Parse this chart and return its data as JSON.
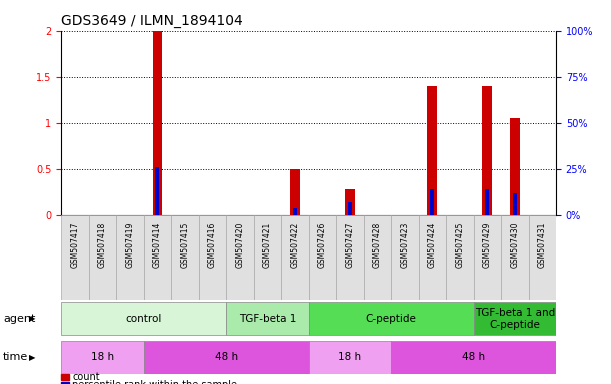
{
  "title": "GDS3649 / ILMN_1894104",
  "samples": [
    "GSM507417",
    "GSM507418",
    "GSM507419",
    "GSM507414",
    "GSM507415",
    "GSM507416",
    "GSM507420",
    "GSM507421",
    "GSM507422",
    "GSM507426",
    "GSM507427",
    "GSM507428",
    "GSM507423",
    "GSM507424",
    "GSM507425",
    "GSM507429",
    "GSM507430",
    "GSM507431"
  ],
  "counts": [
    0,
    0,
    0,
    2.0,
    0,
    0,
    0,
    0,
    0.5,
    0,
    0.28,
    0,
    0,
    1.4,
    0,
    1.4,
    1.05,
    0
  ],
  "percentiles_pct": [
    0,
    0,
    0,
    26,
    0,
    0,
    0,
    0,
    4,
    0,
    7,
    0,
    0,
    14,
    0,
    14,
    12,
    0
  ],
  "bar_color_red": "#cc0000",
  "bar_color_blue": "#0000cc",
  "ylim_left": [
    0,
    2.0
  ],
  "ylim_right": [
    0,
    100
  ],
  "yticks_left": [
    0,
    0.5,
    1.0,
    1.5,
    2.0
  ],
  "yticks_right": [
    0,
    25,
    50,
    75,
    100
  ],
  "ytick_labels_left": [
    "0",
    "0.5",
    "1",
    "1.5",
    "2"
  ],
  "ytick_labels_right": [
    "0%",
    "25%",
    "50%",
    "75%",
    "100%"
  ],
  "agent_groups": [
    {
      "label": "control",
      "start": 0,
      "end": 6,
      "color": "#d8f5d8"
    },
    {
      "label": "TGF-beta 1",
      "start": 6,
      "end": 9,
      "color": "#aaeaaa"
    },
    {
      "label": "C-peptide",
      "start": 9,
      "end": 15,
      "color": "#55dd55"
    },
    {
      "label": "TGF-beta 1 and\nC-peptide",
      "start": 15,
      "end": 18,
      "color": "#33bb33"
    }
  ],
  "time_groups": [
    {
      "label": "18 h",
      "start": 0,
      "end": 3,
      "color": "#f0a0f0"
    },
    {
      "label": "48 h",
      "start": 3,
      "end": 9,
      "color": "#dd55dd"
    },
    {
      "label": "18 h",
      "start": 9,
      "end": 12,
      "color": "#f0a0f0"
    },
    {
      "label": "48 h",
      "start": 12,
      "end": 18,
      "color": "#dd55dd"
    }
  ],
  "sample_box_color": "#e0e0e0",
  "sample_box_edge": "#aaaaaa",
  "legend_count_color": "#cc0000",
  "legend_pct_color": "#0000cc",
  "red_bar_width": 0.35,
  "blue_bar_width": 0.15,
  "row_label_agent": "agent",
  "row_label_time": "time",
  "grid_color": "#000000",
  "background_color": "#ffffff",
  "title_fontsize": 10,
  "tick_fontsize": 7,
  "label_fontsize": 8,
  "sample_fontsize": 5.5,
  "annot_fontsize": 7.5
}
